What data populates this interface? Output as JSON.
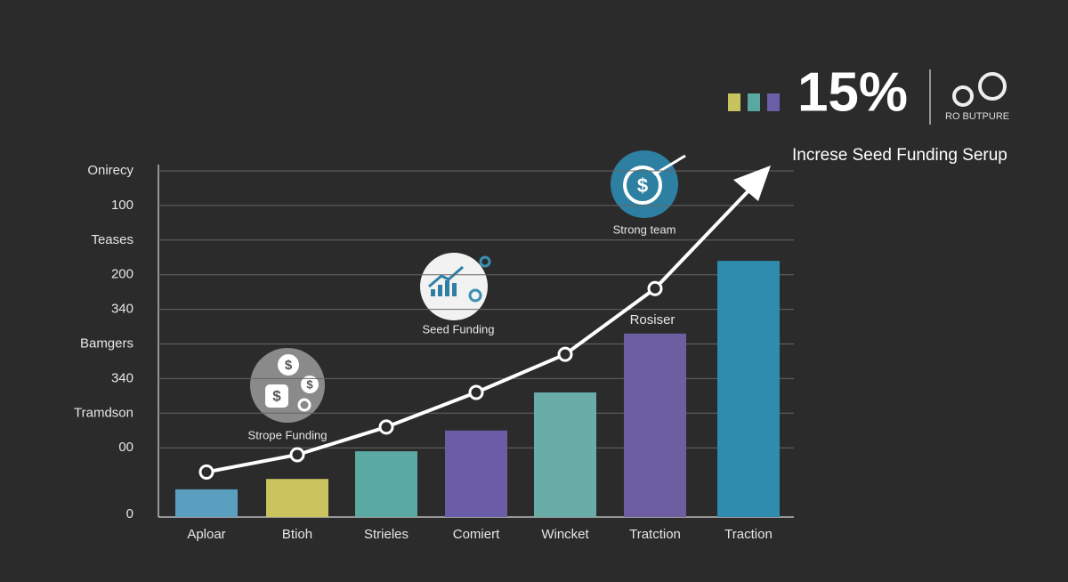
{
  "chart_data": {
    "type": "bar",
    "categories": [
      "Aploar",
      "Btioh",
      "Strieles",
      "Comiert",
      "Wincket",
      "Tratction",
      "Traction"
    ],
    "values": [
      0.8,
      1.1,
      1.9,
      2.5,
      3.6,
      5.3,
      7.4
    ],
    "colors": [
      "#5b9fc0",
      "#cbc35e",
      "#5aa9a3",
      "#6a5ca6",
      "#6aaca8",
      "#6c5ea0",
      "#2f8cae"
    ],
    "line": {
      "values": [
        1.3,
        1.8,
        2.6,
        3.6,
        4.7,
        6.6,
        null
      ],
      "color": "#ffffff"
    },
    "ylim": [
      0,
      10
    ],
    "yticks": [
      0,
      2,
      3,
      4,
      5,
      6,
      7,
      8,
      9,
      10
    ],
    "y_labels": [
      "0",
      "00",
      "Tramdson",
      "340",
      "Bamgers",
      "340",
      "200",
      "Teases",
      "100",
      "Onirecy"
    ],
    "grid": true,
    "annotations": [
      "Strope Funding",
      "Seed Funding",
      "Strong team",
      "Rosiser"
    ],
    "headline": "15%",
    "badge": "RO BUTPURE",
    "subheadline": "Increse Seed Funding Serup",
    "legend_colors": [
      "#c9c35f",
      "#5aa8a2",
      "#6b5fa8"
    ]
  }
}
